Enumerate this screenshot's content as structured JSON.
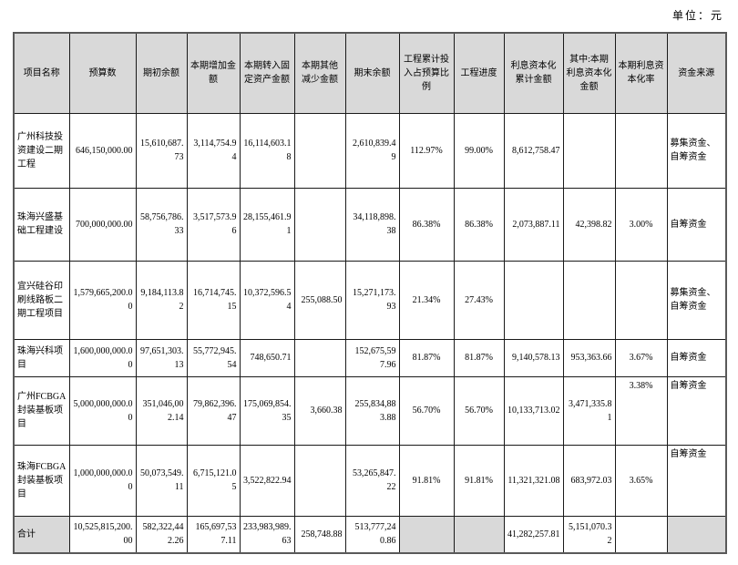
{
  "unit_label": "单位：元",
  "table": {
    "headers": [
      "项目名称",
      "预算数",
      "期初余额",
      "本期增加金额",
      "本期转入固定资产金额",
      "本期其他减少金额",
      "期末余额",
      "工程累计投入占预算比例",
      "工程进度",
      "利息资本化累计金额",
      "其中:本期利息资本化金额",
      "本期利息资本化率",
      "资金来源"
    ],
    "rows": [
      [
        "广州科技投资建设二期工程",
        "646,150,000.00",
        "15,610,687.73",
        "3,114,754.94",
        "16,114,603.18",
        "",
        "2,610,839.49",
        "112.97%",
        "99.00%",
        "8,612,758.47",
        "",
        "",
        "募集资金、自筹资金"
      ],
      [
        "珠海兴盛基础工程建设",
        "700,000,000.00",
        "58,756,786.33",
        "3,517,573.96",
        "28,155,461.91",
        "",
        "34,118,898.38",
        "86.38%",
        "86.38%",
        "2,073,887.11",
        "42,398.82",
        "3.00%",
        "自筹资金"
      ],
      [
        "宜兴硅谷印刷线路板二期工程项目",
        "1,579,665,200.00",
        "9,184,113.82",
        "16,714,745.15",
        "10,372,596.54",
        "255,088.50",
        "15,271,173.93",
        "21.34%",
        "27.43%",
        "",
        "",
        "",
        "募集资金、自筹资金"
      ],
      [
        "珠海兴科项目",
        "1,600,000,000.00",
        "97,651,303.13",
        "55,772,945.54",
        "748,650.71",
        "",
        "152,675,597.96",
        "81.87%",
        "81.87%",
        "9,140,578.13",
        "953,363.66",
        "3.67%",
        "自筹资金"
      ],
      [
        "广州FCBGA封装基板项目",
        "5,000,000,000.00",
        "351,046,002.14",
        "79,862,396.47",
        "175,069,854.35",
        "3,660.38",
        "255,834,883.88",
        "56.70%",
        "56.70%",
        "10,133,713.02",
        "3,471,335.81",
        "3.38%",
        "自筹资金"
      ],
      [
        "珠海FCBGA封装基板项目",
        "1,000,000,000.00",
        "50,073,549.11",
        "6,715,121.05",
        "3,522,822.94",
        "",
        "53,265,847.22",
        "91.81%",
        "91.81%",
        "11,321,321.08",
        "683,972.03",
        "3.65%",
        "自筹资金"
      ]
    ],
    "total_row": [
      "合计",
      "10,525,815,200.00",
      "582,322,442.26",
      "165,697,537.11",
      "233,983,989.63",
      "258,748.88",
      "513,777,240.86",
      "",
      "",
      "41,282,257.81",
      "5,151,070.32",
      "",
      ""
    ]
  }
}
